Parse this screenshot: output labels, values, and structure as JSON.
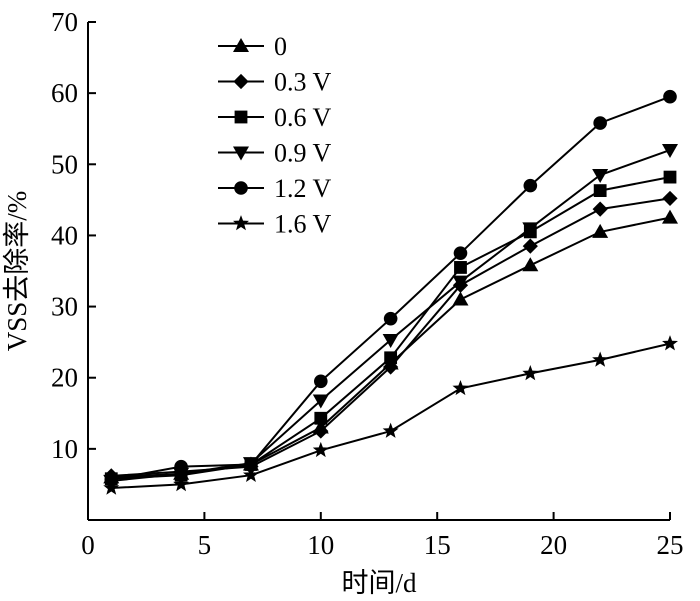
{
  "chart_data": {
    "type": "line",
    "title": "",
    "xlabel": "时间/d",
    "ylabel": "VSS去除率/%",
    "xlim": [
      0,
      25
    ],
    "ylim": [
      0,
      70
    ],
    "xticks": [
      0,
      5,
      10,
      15,
      20,
      25
    ],
    "yticks": [
      10,
      20,
      30,
      40,
      50,
      60,
      70
    ],
    "grid": false,
    "legend_position": "top-left",
    "x": [
      1,
      4,
      7,
      10,
      13,
      16,
      19,
      22,
      25
    ],
    "series": [
      {
        "name": "0",
        "marker": "triangle-up",
        "values": [
          6.0,
          6.5,
          7.8,
          13.0,
          22.0,
          31.0,
          35.8,
          40.5,
          42.5
        ]
      },
      {
        "name": "0.3 V",
        "marker": "diamond",
        "values": [
          6.2,
          6.8,
          7.5,
          12.5,
          21.5,
          33.0,
          38.5,
          43.7,
          45.2
        ]
      },
      {
        "name": "0.6 V",
        "marker": "square",
        "values": [
          5.8,
          6.3,
          7.8,
          14.3,
          22.8,
          35.5,
          40.5,
          46.3,
          48.2
        ]
      },
      {
        "name": "0.9 V",
        "marker": "triangle-down",
        "values": [
          5.5,
          6.5,
          8.0,
          16.8,
          25.3,
          33.5,
          41.0,
          48.5,
          52.0
        ]
      },
      {
        "name": "1.2 V",
        "marker": "circle",
        "values": [
          5.7,
          7.5,
          7.8,
          19.5,
          28.3,
          37.5,
          47.0,
          55.8,
          59.5
        ]
      },
      {
        "name": "1.6 V",
        "marker": "star",
        "values": [
          4.5,
          5.0,
          6.3,
          9.8,
          12.5,
          18.5,
          20.6,
          22.5,
          24.8
        ]
      }
    ]
  }
}
